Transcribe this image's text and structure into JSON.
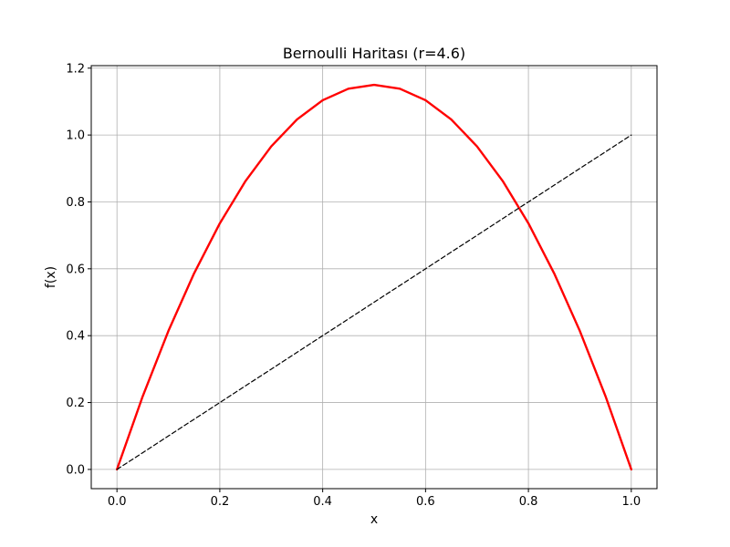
{
  "chart_data": {
    "type": "line",
    "title": "Bernoulli Haritası (r=4.6)",
    "xlabel": "x",
    "ylabel": "f(x)",
    "xlim": [
      -0.05,
      1.05
    ],
    "ylim": [
      -0.0575,
      1.2075
    ],
    "xticks": [
      0.0,
      0.2,
      0.4,
      0.6,
      0.8,
      1.0
    ],
    "xtick_labels": [
      "0.0",
      "0.2",
      "0.4",
      "0.6",
      "0.8",
      "1.0"
    ],
    "yticks": [
      0.0,
      0.2,
      0.4,
      0.6,
      0.8,
      1.0,
      1.2
    ],
    "ytick_labels": [
      "0.0",
      "0.2",
      "0.4",
      "0.6",
      "0.8",
      "1.0",
      "1.2"
    ],
    "grid": true,
    "series": [
      {
        "style": "solid",
        "color": "#ff0000",
        "x": [
          0.0,
          0.05,
          0.1,
          0.15,
          0.2,
          0.25,
          0.3,
          0.35,
          0.4,
          0.45,
          0.5,
          0.55,
          0.6,
          0.65,
          0.7,
          0.75,
          0.8,
          0.85,
          0.9,
          0.95,
          1.0
        ],
        "y": [
          0.0,
          0.2185,
          0.414,
          0.5865,
          0.736,
          0.8625,
          0.966,
          1.0465,
          1.104,
          1.1385,
          1.15,
          1.1385,
          1.104,
          1.0465,
          0.966,
          0.8625,
          0.736,
          0.5865,
          0.414,
          0.2185,
          0.0
        ]
      },
      {
        "style": "dashed",
        "color": "#000000",
        "x": [
          0.0,
          1.0
        ],
        "y": [
          0.0,
          1.0
        ]
      }
    ]
  }
}
